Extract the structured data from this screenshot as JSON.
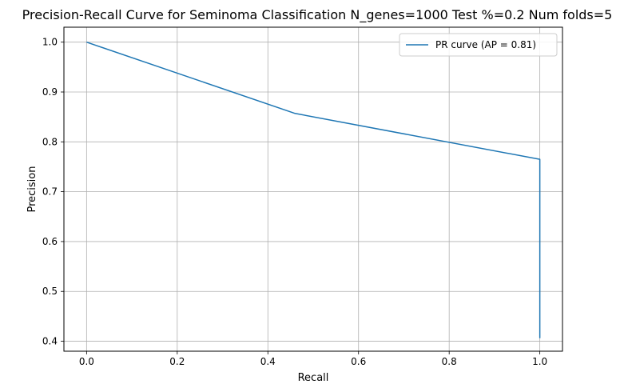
{
  "chart_data": {
    "type": "line",
    "title": "Precision-Recall Curve for Seminoma Classification N_genes=1000 Test %=0.2 Num folds=5",
    "xlabel": "Recall",
    "ylabel": "Precision",
    "xlim": [
      -0.05,
      1.05
    ],
    "ylim": [
      0.38,
      1.03
    ],
    "xticks": [
      0.0,
      0.2,
      0.4,
      0.6,
      0.8,
      1.0
    ],
    "xtick_labels": [
      "0.0",
      "0.2",
      "0.4",
      "0.6",
      "0.8",
      "1.0"
    ],
    "yticks": [
      0.4,
      0.5,
      0.6,
      0.7,
      0.8,
      0.9,
      1.0
    ],
    "ytick_labels": [
      "0.4",
      "0.5",
      "0.6",
      "0.7",
      "0.8",
      "0.9",
      "1.0"
    ],
    "grid": true,
    "legend": {
      "position": "top-right"
    },
    "series": [
      {
        "name": "PR curve (AP = 0.81)",
        "color": "#1f77b4",
        "x": [
          0.0,
          0.46,
          1.0,
          1.0
        ],
        "y": [
          1.0,
          0.857,
          0.765,
          0.406
        ]
      }
    ]
  }
}
